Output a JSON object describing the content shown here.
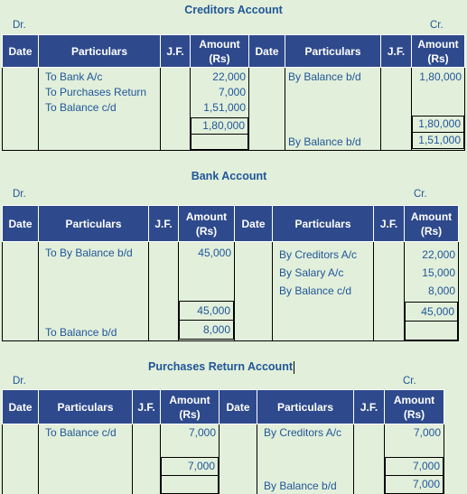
{
  "headers": {
    "date": "Date",
    "particulars": "Particulars",
    "jf": "J.F.",
    "amount": "Amount (Rs)"
  },
  "creditors": {
    "title": "Creditors Account",
    "dr": "Dr.",
    "cr": "Cr.",
    "debit": [
      {
        "particulars": "To Bank A/c",
        "amount": "22,000"
      },
      {
        "particulars": "To Purchases Return",
        "amount": "7,000"
      },
      {
        "particulars": "To Balance c/d",
        "amount": "1,51,000"
      }
    ],
    "credit": [
      {
        "particulars": "By Balance b/d",
        "amount": "1,80,000"
      }
    ],
    "debit_total": "1,80,000",
    "credit_total": "1,80,000",
    "bd_particulars": "By Balance b/d",
    "bd_amount": "1,51,000"
  },
  "bank": {
    "title": "Bank Account",
    "dr": "Dr.",
    "cr": "Cr.",
    "debit": [
      {
        "particulars": "To By Balance b/d",
        "amount": "45,000"
      }
    ],
    "credit": [
      {
        "particulars": "By Creditors A/c",
        "amount": "22,000"
      },
      {
        "particulars": "By Salary A/c",
        "amount": "15,000"
      },
      {
        "particulars": "By Balance c/d",
        "amount": "8,000"
      }
    ],
    "debit_total": "45,000",
    "credit_total": "45,000",
    "bd_particulars": "To Balance b/d",
    "bd_amount": "8,000"
  },
  "purchases_return": {
    "title": "Purchases Return Account",
    "dr": "Dr.",
    "cr": "Cr.",
    "debit": [
      {
        "particulars": "To Balance c/d",
        "amount": "7,000"
      }
    ],
    "credit": [
      {
        "particulars": "By Creditors A/c",
        "amount": "7,000"
      }
    ],
    "debit_total": "7,000",
    "credit_total": "7,000",
    "bd_particulars": "By Balance b/d",
    "bd_amount": "7,000"
  }
}
